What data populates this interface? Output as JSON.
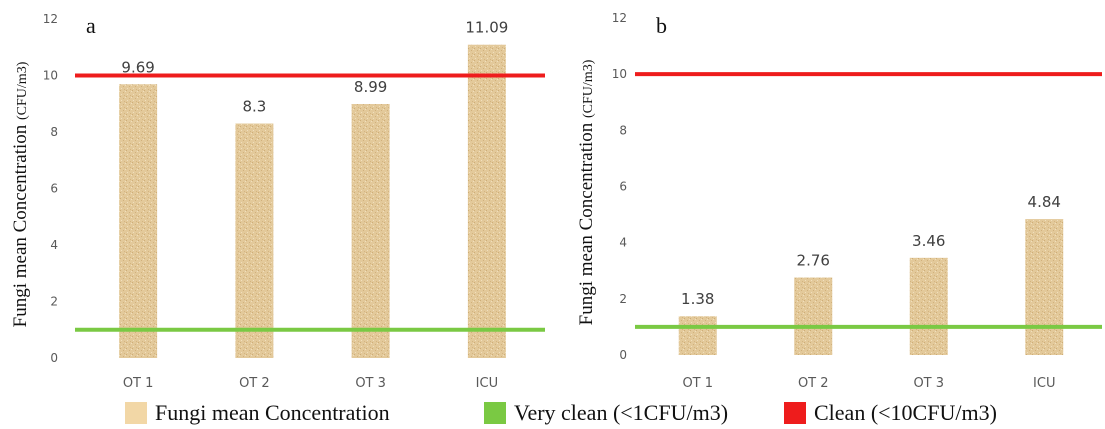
{
  "legend": {
    "bars_label": "Fungi mean Concentration",
    "very_clean_label": "Very clean (<1CFU/m3)",
    "clean_label": "Clean (<10CFU/m3)"
  },
  "colors": {
    "bar": "#e3c99a",
    "bar_texture": "#c9a66e",
    "very_clean": "#7ac943",
    "clean": "#ee1c1c",
    "axis_text": "#595959"
  },
  "chart_data": [
    {
      "type": "bar",
      "panel": "a",
      "ylabel": "Fungi mean Concentration",
      "ylabel_unit": "(CFU/m3)",
      "categories": [
        "OT 1",
        "OT 2",
        "OT 3",
        "ICU"
      ],
      "series": [
        {
          "name": "Fungi mean Concentration",
          "values": [
            9.69,
            8.3,
            8.99,
            11.09
          ]
        }
      ],
      "data_labels": [
        "9.69",
        "8.3",
        "8.99",
        "11.09"
      ],
      "reference_lines": [
        {
          "name": "Very clean (<1CFU/m3)",
          "value": 1,
          "color": "#7ac943"
        },
        {
          "name": "Clean (<10CFU/m3)",
          "value": 10,
          "color": "#ee1c1c"
        }
      ],
      "ylim": [
        0,
        12
      ],
      "yticks": [
        0,
        2,
        4,
        6,
        8,
        10,
        12
      ],
      "grid": false
    },
    {
      "type": "bar",
      "panel": "b",
      "ylabel": "Fungi mean Concentration",
      "ylabel_unit": "(CFU/m3)",
      "categories": [
        "OT 1",
        "OT 2",
        "OT 3",
        "ICU"
      ],
      "series": [
        {
          "name": "Fungi mean Concentration",
          "values": [
            1.38,
            2.76,
            3.46,
            4.84
          ]
        }
      ],
      "data_labels": [
        "1.38",
        "2.76",
        "3.46",
        "4.84"
      ],
      "reference_lines": [
        {
          "name": "Very clean (<1CFU/m3)",
          "value": 1,
          "color": "#7ac943"
        },
        {
          "name": "Clean (<10CFU/m3)",
          "value": 10,
          "color": "#ee1c1c"
        }
      ],
      "ylim": [
        0,
        12
      ],
      "yticks": [
        0,
        2,
        4,
        6,
        8,
        10,
        12
      ],
      "grid": false
    }
  ]
}
